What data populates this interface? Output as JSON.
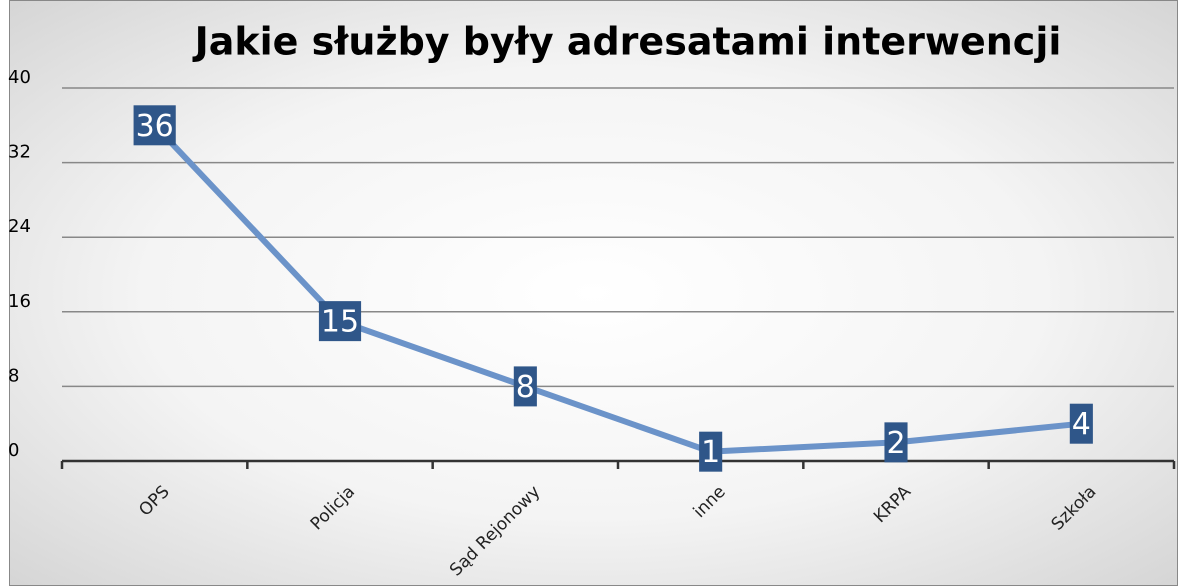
{
  "chart_data": {
    "type": "line",
    "title": "Jakie służby były adresatami interwencji",
    "categories": [
      "OPS",
      "Policja",
      "Sąd Rejonowy",
      "inne",
      "KRPA",
      "Szkoła"
    ],
    "values": [
      36,
      15,
      8,
      1,
      2,
      4
    ],
    "color": "#6b93c9",
    "ylim": [
      0,
      40
    ],
    "yticks": [
      0,
      8,
      16,
      24,
      32,
      40
    ],
    "grid": true
  }
}
